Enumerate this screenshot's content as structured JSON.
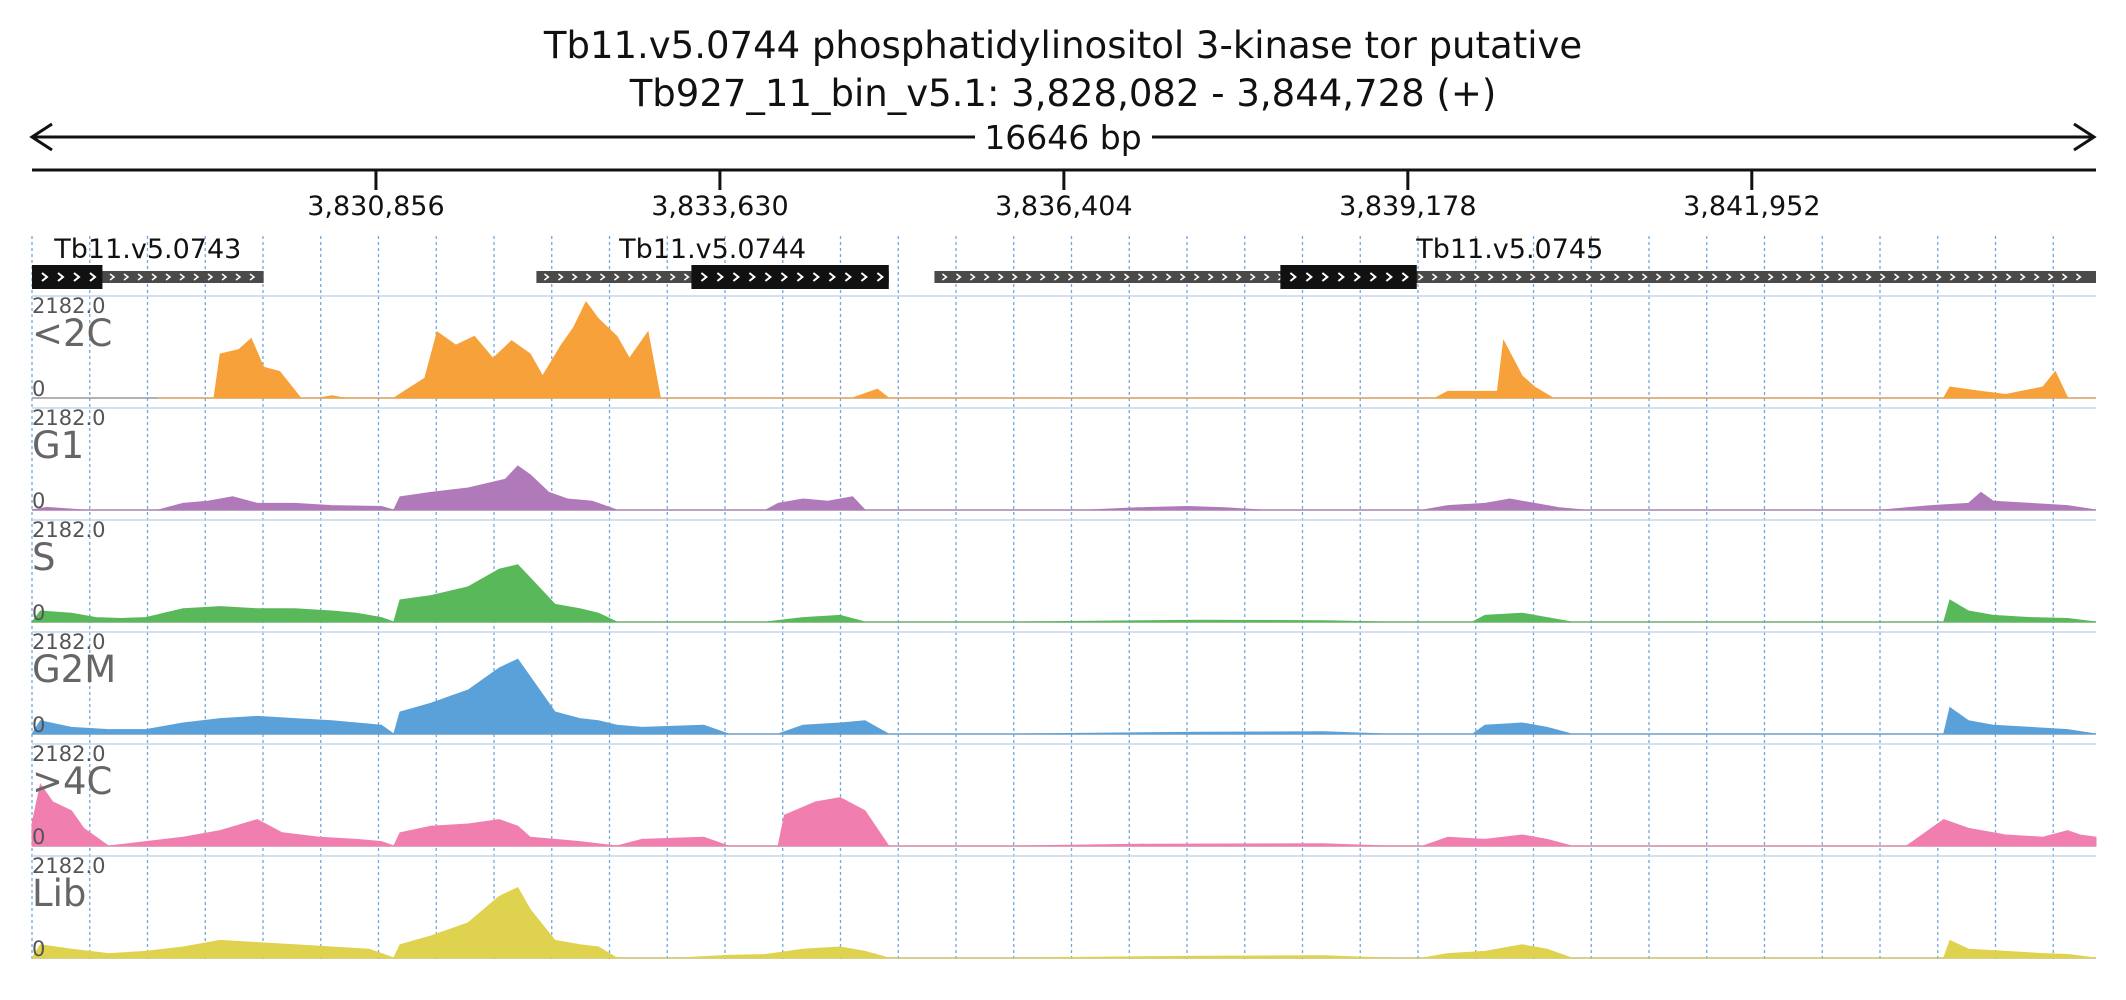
{
  "header": {
    "title_line1": "Tb11.v5.0744  phosphatidylinositol 3-kinase tor  putative",
    "title_line2": "Tb927_11_bin_v5.1: 3,828,082 - 3,844,728 (+)",
    "span_label": "16646 bp"
  },
  "genome_axis": {
    "start": 3828082,
    "end": 3844728,
    "strand": "+",
    "ticks": [
      {
        "value": 3830856,
        "label": "3,830,856"
      },
      {
        "value": 3833630,
        "label": "3,833,630"
      },
      {
        "value": 3836404,
        "label": "3,836,404"
      },
      {
        "value": 3839178,
        "label": "3,839,178"
      },
      {
        "value": 3841952,
        "label": "3,841,952"
      }
    ]
  },
  "genes": [
    {
      "name": "Tb11.v5.0743",
      "start": 3828082,
      "end": 3829950,
      "cds_start": 3828082,
      "cds_end": 3828650,
      "strand": "+"
    },
    {
      "name": "Tb11.v5.0744",
      "start": 3832150,
      "end": 3834992,
      "cds_start": 3833400,
      "cds_end": 3834992,
      "strand": "+"
    },
    {
      "name": "Tb11.v5.0745",
      "start": 3835360,
      "end": 3844728,
      "cds_start": 3838150,
      "cds_end": 3839250,
      "strand": "+"
    }
  ],
  "chart_data": {
    "type": "area",
    "x_range": [
      3828082,
      3844728
    ],
    "ylim": [
      0,
      2182.0
    ],
    "y_max_label": "2182.0",
    "y_min_label": "0",
    "grid": true,
    "series": [
      {
        "name": "<2C",
        "color": "#f7a13b",
        "points": [
          [
            3829100,
            0
          ],
          [
            3829550,
            0
          ],
          [
            3829600,
            1000
          ],
          [
            3829750,
            1100
          ],
          [
            3829850,
            1350
          ],
          [
            3829950,
            700
          ],
          [
            3830080,
            600
          ],
          [
            3830250,
            0
          ],
          [
            3830400,
            0
          ],
          [
            3830500,
            50
          ],
          [
            3830600,
            0
          ],
          [
            3831000,
            0
          ],
          [
            3831250,
            450
          ],
          [
            3831350,
            1500
          ],
          [
            3831500,
            1200
          ],
          [
            3831650,
            1400
          ],
          [
            3831800,
            900
          ],
          [
            3831950,
            1300
          ],
          [
            3832100,
            1000
          ],
          [
            3832200,
            500
          ],
          [
            3832350,
            1200
          ],
          [
            3832450,
            1600
          ],
          [
            3832550,
            2182
          ],
          [
            3832650,
            1800
          ],
          [
            3832800,
            1400
          ],
          [
            3832900,
            900
          ],
          [
            3833050,
            1500
          ],
          [
            3833150,
            0
          ],
          [
            3833300,
            0
          ],
          [
            3833500,
            0
          ],
          [
            3833600,
            0
          ],
          [
            3834700,
            0
          ],
          [
            3834900,
            200
          ],
          [
            3834992,
            0
          ],
          [
            3836000,
            0
          ],
          [
            3838200,
            0
          ],
          [
            3839400,
            0
          ],
          [
            3839500,
            150
          ],
          [
            3839900,
            150
          ],
          [
            3839950,
            1300
          ],
          [
            3840100,
            500
          ],
          [
            3840200,
            250
          ],
          [
            3840350,
            0
          ],
          [
            3843500,
            0
          ],
          [
            3843550,
            250
          ],
          [
            3843800,
            150
          ],
          [
            3844000,
            80
          ],
          [
            3844300,
            250
          ],
          [
            3844400,
            600
          ],
          [
            3844500,
            0
          ],
          [
            3844728,
            0
          ]
        ]
      },
      {
        "name": "G1",
        "color": "#b079b9",
        "points": [
          [
            3828082,
            0
          ],
          [
            3828200,
            60
          ],
          [
            3828500,
            0
          ],
          [
            3829100,
            0
          ],
          [
            3829300,
            150
          ],
          [
            3829500,
            200
          ],
          [
            3829700,
            300
          ],
          [
            3829900,
            150
          ],
          [
            3830200,
            150
          ],
          [
            3830500,
            100
          ],
          [
            3830900,
            80
          ],
          [
            3831000,
            0
          ],
          [
            3831050,
            300
          ],
          [
            3831300,
            400
          ],
          [
            3831600,
            500
          ],
          [
            3831900,
            700
          ],
          [
            3832000,
            1000
          ],
          [
            3832100,
            800
          ],
          [
            3832250,
            400
          ],
          [
            3832400,
            250
          ],
          [
            3832600,
            200
          ],
          [
            3832700,
            100
          ],
          [
            3832800,
            0
          ],
          [
            3834000,
            0
          ],
          [
            3834100,
            150
          ],
          [
            3834300,
            250
          ],
          [
            3834500,
            200
          ],
          [
            3834700,
            300
          ],
          [
            3834800,
            0
          ],
          [
            3836600,
            0
          ],
          [
            3837000,
            50
          ],
          [
            3837400,
            80
          ],
          [
            3837700,
            50
          ],
          [
            3838000,
            0
          ],
          [
            3839300,
            0
          ],
          [
            3839500,
            100
          ],
          [
            3839800,
            150
          ],
          [
            3840000,
            250
          ],
          [
            3840200,
            150
          ],
          [
            3840400,
            50
          ],
          [
            3840600,
            0
          ],
          [
            3843000,
            0
          ],
          [
            3843400,
            100
          ],
          [
            3843700,
            150
          ],
          [
            3843800,
            400
          ],
          [
            3843900,
            200
          ],
          [
            3844200,
            150
          ],
          [
            3844500,
            100
          ],
          [
            3844728,
            0
          ]
        ]
      },
      {
        "name": "S",
        "color": "#59b85a",
        "points": [
          [
            3828082,
            0
          ],
          [
            3828150,
            250
          ],
          [
            3828400,
            200
          ],
          [
            3828600,
            100
          ],
          [
            3828800,
            80
          ],
          [
            3829000,
            100
          ],
          [
            3829300,
            300
          ],
          [
            3829600,
            350
          ],
          [
            3829900,
            300
          ],
          [
            3830200,
            300
          ],
          [
            3830500,
            250
          ],
          [
            3830700,
            200
          ],
          [
            3830900,
            100
          ],
          [
            3831000,
            0
          ],
          [
            3831050,
            500
          ],
          [
            3831300,
            600
          ],
          [
            3831600,
            800
          ],
          [
            3831850,
            1200
          ],
          [
            3832000,
            1300
          ],
          [
            3832100,
            1000
          ],
          [
            3832300,
            400
          ],
          [
            3832500,
            300
          ],
          [
            3832650,
            200
          ],
          [
            3832800,
            0
          ],
          [
            3834000,
            0
          ],
          [
            3834300,
            100
          ],
          [
            3834600,
            150
          ],
          [
            3834800,
            0
          ],
          [
            3836000,
            0
          ],
          [
            3837500,
            40
          ],
          [
            3838500,
            30
          ],
          [
            3839000,
            0
          ],
          [
            3839700,
            0
          ],
          [
            3839800,
            150
          ],
          [
            3840100,
            200
          ],
          [
            3840300,
            100
          ],
          [
            3840500,
            0
          ],
          [
            3843500,
            0
          ],
          [
            3843550,
            500
          ],
          [
            3843700,
            250
          ],
          [
            3843900,
            150
          ],
          [
            3844200,
            100
          ],
          [
            3844500,
            80
          ],
          [
            3844728,
            0
          ]
        ]
      },
      {
        "name": "G2M",
        "color": "#5aa1d9",
        "points": [
          [
            3828082,
            0
          ],
          [
            3828150,
            300
          ],
          [
            3828400,
            150
          ],
          [
            3828700,
            100
          ],
          [
            3829000,
            100
          ],
          [
            3829300,
            250
          ],
          [
            3829600,
            350
          ],
          [
            3829900,
            400
          ],
          [
            3830200,
            350
          ],
          [
            3830500,
            300
          ],
          [
            3830700,
            250
          ],
          [
            3830900,
            200
          ],
          [
            3831000,
            0
          ],
          [
            3831050,
            500
          ],
          [
            3831300,
            700
          ],
          [
            3831600,
            1000
          ],
          [
            3831850,
            1500
          ],
          [
            3832000,
            1700
          ],
          [
            3832100,
            1300
          ],
          [
            3832300,
            500
          ],
          [
            3832500,
            350
          ],
          [
            3832650,
            300
          ],
          [
            3832800,
            200
          ],
          [
            3833000,
            150
          ],
          [
            3833500,
            200
          ],
          [
            3833700,
            0
          ],
          [
            3834100,
            0
          ],
          [
            3834300,
            200
          ],
          [
            3834600,
            250
          ],
          [
            3834800,
            300
          ],
          [
            3834992,
            0
          ],
          [
            3836000,
            0
          ],
          [
            3837500,
            40
          ],
          [
            3838500,
            50
          ],
          [
            3839000,
            0
          ],
          [
            3839700,
            0
          ],
          [
            3839800,
            200
          ],
          [
            3840100,
            250
          ],
          [
            3840300,
            150
          ],
          [
            3840500,
            0
          ],
          [
            3843500,
            0
          ],
          [
            3843550,
            600
          ],
          [
            3843700,
            300
          ],
          [
            3843900,
            200
          ],
          [
            3844200,
            150
          ],
          [
            3844500,
            100
          ],
          [
            3844728,
            0
          ]
        ]
      },
      {
        "name": ">4C",
        "color": "#f07fb0",
        "points": [
          [
            3828082,
            500
          ],
          [
            3828150,
            1400
          ],
          [
            3828250,
            1000
          ],
          [
            3828400,
            800
          ],
          [
            3828500,
            400
          ],
          [
            3828700,
            0
          ],
          [
            3829000,
            100
          ],
          [
            3829300,
            200
          ],
          [
            3829600,
            350
          ],
          [
            3829900,
            600
          ],
          [
            3830100,
            300
          ],
          [
            3830400,
            200
          ],
          [
            3830700,
            150
          ],
          [
            3830900,
            100
          ],
          [
            3831000,
            0
          ],
          [
            3831050,
            300
          ],
          [
            3831300,
            450
          ],
          [
            3831600,
            500
          ],
          [
            3831850,
            600
          ],
          [
            3832000,
            450
          ],
          [
            3832100,
            200
          ],
          [
            3832300,
            150
          ],
          [
            3832500,
            100
          ],
          [
            3832800,
            0
          ],
          [
            3833000,
            150
          ],
          [
            3833500,
            200
          ],
          [
            3833700,
            0
          ],
          [
            3834100,
            0
          ],
          [
            3834150,
            700
          ],
          [
            3834400,
            1000
          ],
          [
            3834600,
            1100
          ],
          [
            3834800,
            800
          ],
          [
            3834992,
            0
          ],
          [
            3836000,
            0
          ],
          [
            3837000,
            40
          ],
          [
            3838500,
            50
          ],
          [
            3839000,
            0
          ],
          [
            3839300,
            0
          ],
          [
            3839500,
            200
          ],
          [
            3839800,
            150
          ],
          [
            3840100,
            250
          ],
          [
            3840300,
            150
          ],
          [
            3840500,
            0
          ],
          [
            3843200,
            0
          ],
          [
            3843500,
            600
          ],
          [
            3843700,
            400
          ],
          [
            3844000,
            250
          ],
          [
            3844300,
            200
          ],
          [
            3844500,
            350
          ],
          [
            3844600,
            250
          ],
          [
            3844728,
            200
          ]
        ]
      },
      {
        "name": "Lib",
        "color": "#dfd24e",
        "points": [
          [
            3828082,
            0
          ],
          [
            3828150,
            300
          ],
          [
            3828400,
            200
          ],
          [
            3828700,
            100
          ],
          [
            3829000,
            150
          ],
          [
            3829300,
            250
          ],
          [
            3829600,
            400
          ],
          [
            3829900,
            350
          ],
          [
            3830200,
            300
          ],
          [
            3830500,
            250
          ],
          [
            3830800,
            200
          ],
          [
            3831000,
            0
          ],
          [
            3831050,
            300
          ],
          [
            3831300,
            500
          ],
          [
            3831600,
            800
          ],
          [
            3831850,
            1400
          ],
          [
            3832000,
            1600
          ],
          [
            3832100,
            1100
          ],
          [
            3832300,
            400
          ],
          [
            3832500,
            300
          ],
          [
            3832650,
            250
          ],
          [
            3832800,
            0
          ],
          [
            3833300,
            0
          ],
          [
            3833700,
            60
          ],
          [
            3834000,
            80
          ],
          [
            3834300,
            200
          ],
          [
            3834600,
            250
          ],
          [
            3834800,
            150
          ],
          [
            3834992,
            0
          ],
          [
            3836000,
            0
          ],
          [
            3837500,
            40
          ],
          [
            3838500,
            50
          ],
          [
            3839000,
            0
          ],
          [
            3839300,
            0
          ],
          [
            3839500,
            100
          ],
          [
            3839800,
            150
          ],
          [
            3840100,
            300
          ],
          [
            3840300,
            200
          ],
          [
            3840500,
            0
          ],
          [
            3843500,
            0
          ],
          [
            3843550,
            400
          ],
          [
            3843700,
            200
          ],
          [
            3844000,
            150
          ],
          [
            3844300,
            100
          ],
          [
            3844500,
            80
          ],
          [
            3844728,
            0
          ]
        ]
      }
    ]
  }
}
